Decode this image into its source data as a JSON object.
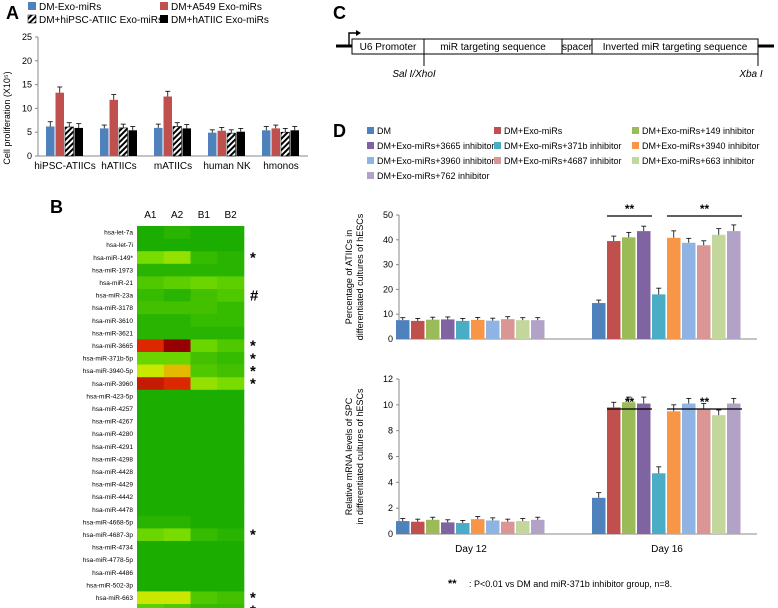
{
  "panels": {
    "a": "A",
    "b": "B",
    "c": "C",
    "d": "D"
  },
  "colors": {
    "blue": "#4f81bd",
    "red": "#c0504d",
    "green": "#9bbb59",
    "purple": "#8064a2",
    "teal": "#4bacc6",
    "orange": "#f79646",
    "lightblue": "#8fb4e3",
    "pink": "#d99694",
    "lightgreen": "#c3d69b",
    "lavender": "#b3a2c7",
    "heat_green": "#00a000"
  },
  "chart_data": [
    {
      "id": "A",
      "type": "bar",
      "ylabel": "Cell proliferation  (X10⁵)",
      "ylim": [
        0,
        25
      ],
      "yticks": [
        0,
        5,
        10,
        15,
        20,
        25
      ],
      "categories": [
        "hiPSC-ATIICs",
        "hATIICs",
        "mATIICs",
        "human NK",
        "hmonos"
      ],
      "series": [
        {
          "name": "DM-Exo-miRs",
          "color": "#4f81bd",
          "pattern": "solid",
          "values": [
            6.2,
            5.8,
            5.9,
            4.9,
            5.4
          ],
          "errors": [
            1.0,
            0.7,
            0.8,
            0.6,
            0.8
          ]
        },
        {
          "name": "DM+A549 Exo-miRs",
          "color": "#c0504d",
          "pattern": "solid",
          "values": [
            13.3,
            11.8,
            12.5,
            5.3,
            5.8
          ],
          "errors": [
            1.2,
            1.1,
            1.1,
            0.7,
            0.7
          ]
        },
        {
          "name": "DM+hiPSC-ATIIC Exo-miRs",
          "color": "#000000",
          "pattern": "hatch",
          "values": [
            6.1,
            5.9,
            6.2,
            4.8,
            5.0
          ],
          "errors": [
            0.9,
            0.8,
            0.8,
            0.7,
            0.8
          ]
        },
        {
          "name": "DM+hATIIC Exo-miRs",
          "color": "#000000",
          "pattern": "solid",
          "values": [
            5.9,
            5.4,
            5.8,
            5.1,
            5.4
          ],
          "errors": [
            0.9,
            0.8,
            0.8,
            0.7,
            0.8
          ]
        }
      ],
      "legend_order": [
        0,
        1,
        2,
        3
      ]
    },
    {
      "id": "B",
      "type": "heatmap",
      "columns": [
        "A1",
        "A2",
        "B1",
        "B2"
      ],
      "rows": [
        "hsa-let-7a",
        "hsa-let-7i",
        "hsa-miR-149*",
        "hsa-miR-1973",
        "hsa-miR-21",
        "hsa-miR-23a",
        "hsa-miR-3178",
        "hsa-miR-3610",
        "hsa-miR-3621",
        "hsa-miR-3665",
        "hsa-miR-371b-5p",
        "hsa-miR-3940-5p",
        "hsa-miR-3960",
        "hsa-miR-423-5p",
        "hsa-miR-4257",
        "hsa-miR-4267",
        "hsa-miR-4280",
        "hsa-miR-4291",
        "hsa-miR-4298",
        "hsa-miR-4428",
        "hsa-miR-4429",
        "hsa-miR-4442",
        "hsa-miR-4478",
        "hsa-miR-4668-5p",
        "hsa-miR-4687-3p",
        "hsa-miR-4734",
        "hsa-miR-4778-5p",
        "hsa-miR-4486",
        "hsa-miR-502-3p",
        "hsa-miR-663",
        "hsa-miR-762"
      ],
      "marks": [
        "",
        "",
        "*",
        "",
        "",
        "#",
        "",
        "",
        "",
        "*",
        "*",
        "*",
        "*",
        "",
        "",
        "",
        "",
        "",
        "",
        "",
        "",
        "",
        "",
        "",
        "*",
        "",
        "",
        "",
        "",
        "*",
        "*"
      ],
      "values": [
        [
          0.1,
          0.15,
          0.1,
          0.1
        ],
        [
          0.1,
          0.1,
          0.1,
          0.1
        ],
        [
          0.45,
          0.5,
          0.2,
          0.15
        ],
        [
          0.15,
          0.15,
          0.15,
          0.15
        ],
        [
          0.3,
          0.35,
          0.4,
          0.35
        ],
        [
          0.2,
          0.15,
          0.25,
          0.3
        ],
        [
          0.25,
          0.25,
          0.25,
          0.2
        ],
        [
          0.15,
          0.15,
          0.2,
          0.2
        ],
        [
          0.15,
          0.15,
          0.15,
          0.15
        ],
        [
          0.85,
          1.0,
          0.4,
          0.3
        ],
        [
          0.4,
          0.4,
          0.25,
          0.2
        ],
        [
          0.6,
          0.7,
          0.3,
          0.25
        ],
        [
          0.9,
          0.85,
          0.5,
          0.45
        ],
        [
          0.1,
          0.1,
          0.1,
          0.1
        ],
        [
          0.1,
          0.1,
          0.1,
          0.1
        ],
        [
          0.1,
          0.1,
          0.1,
          0.1
        ],
        [
          0.1,
          0.1,
          0.1,
          0.1
        ],
        [
          0.1,
          0.1,
          0.1,
          0.1
        ],
        [
          0.1,
          0.1,
          0.1,
          0.1
        ],
        [
          0.1,
          0.1,
          0.1,
          0.1
        ],
        [
          0.1,
          0.1,
          0.1,
          0.1
        ],
        [
          0.1,
          0.1,
          0.1,
          0.1
        ],
        [
          0.1,
          0.1,
          0.1,
          0.1
        ],
        [
          0.15,
          0.15,
          0.1,
          0.1
        ],
        [
          0.4,
          0.45,
          0.2,
          0.15
        ],
        [
          0.1,
          0.1,
          0.1,
          0.1
        ],
        [
          0.1,
          0.1,
          0.1,
          0.1
        ],
        [
          0.1,
          0.1,
          0.1,
          0.1
        ],
        [
          0.1,
          0.1,
          0.1,
          0.1
        ],
        [
          0.6,
          0.6,
          0.3,
          0.25
        ],
        [
          0.35,
          0.3,
          0.2,
          0.2
        ]
      ]
    },
    {
      "id": "D-top",
      "type": "bar",
      "ylabel_lines": [
        "Percentage of ATIICs in",
        "differentiated cultures of hESCs"
      ],
      "ylim": [
        0,
        50
      ],
      "yticks": [
        0,
        10,
        20,
        30,
        40,
        50
      ],
      "categories": [
        "Day 12",
        "Day 16"
      ],
      "series": [
        {
          "name": "DM",
          "color": "#4f81bd",
          "values": [
            7.6,
            14.5
          ],
          "errors": [
            1.0,
            1.2
          ]
        },
        {
          "name": "DM+Exo-miRs",
          "color": "#c0504d",
          "values": [
            7.3,
            39.5
          ],
          "errors": [
            1.0,
            2.0
          ]
        },
        {
          "name": "DM+Exo-miRs+149 inhibitor",
          "color": "#9bbb59",
          "values": [
            7.8,
            41.0
          ],
          "errors": [
            1.0,
            2.0
          ]
        },
        {
          "name": "DM+Exo-miRs+3665 inhibitor",
          "color": "#8064a2",
          "values": [
            7.9,
            43.5
          ],
          "errors": [
            1.0,
            2.0
          ]
        },
        {
          "name": "DM+Exo-miRs+371b inhibitor",
          "color": "#4bacc6",
          "values": [
            7.3,
            18.0
          ],
          "errors": [
            1.0,
            2.5
          ]
        },
        {
          "name": "DM+Exo-miRs+3940 inhibitor",
          "color": "#f79646",
          "values": [
            7.7,
            40.8
          ],
          "errors": [
            1.0,
            2.8
          ]
        },
        {
          "name": "DM+Exo-miRs+3960 inhibitor",
          "color": "#8fb4e3",
          "values": [
            7.4,
            38.8
          ],
          "errors": [
            1.0,
            1.8
          ]
        },
        {
          "name": "DM+Exo-miRs+4687 inhibitor",
          "color": "#d99694",
          "values": [
            8.0,
            37.8
          ],
          "errors": [
            1.0,
            1.8
          ]
        },
        {
          "name": "DM+Exo-miRs+663 inhibitor",
          "color": "#c3d69b",
          "values": [
            7.6,
            42.0
          ],
          "errors": [
            1.0,
            2.5
          ]
        },
        {
          "name": "DM+Exo-miRs+762 inhibitor",
          "color": "#b3a2c7",
          "values": [
            7.6,
            43.5
          ],
          "errors": [
            1.0,
            2.5
          ]
        }
      ],
      "significance": [
        "**",
        "**"
      ]
    },
    {
      "id": "D-bottom",
      "type": "bar",
      "ylabel_lines": [
        "Relative mRNA levels of SPC",
        "in differentiated cultures of hESCs"
      ],
      "ylim": [
        0,
        12
      ],
      "yticks": [
        0,
        2,
        4,
        6,
        8,
        10,
        12
      ],
      "categories": [
        "Day 12",
        "Day 16"
      ],
      "series": [
        {
          "name": "DM",
          "color": "#4f81bd",
          "values": [
            1.0,
            2.8
          ],
          "errors": [
            0.2,
            0.4
          ]
        },
        {
          "name": "DM+Exo-miRs",
          "color": "#c0504d",
          "values": [
            0.95,
            9.8
          ],
          "errors": [
            0.2,
            0.4
          ]
        },
        {
          "name": "DM+Exo-miRs+149 inhibitor",
          "color": "#9bbb59",
          "values": [
            1.1,
            10.2
          ],
          "errors": [
            0.2,
            0.4
          ]
        },
        {
          "name": "DM+Exo-miRs+3665 inhibitor",
          "color": "#8064a2",
          "values": [
            0.9,
            10.1
          ],
          "errors": [
            0.2,
            0.5
          ]
        },
        {
          "name": "DM+Exo-miRs+371b inhibitor",
          "color": "#4bacc6",
          "values": [
            0.85,
            4.7
          ],
          "errors": [
            0.2,
            0.5
          ]
        },
        {
          "name": "DM+Exo-miRs+3940 inhibitor",
          "color": "#f79646",
          "values": [
            1.15,
            9.5
          ],
          "errors": [
            0.2,
            0.5
          ]
        },
        {
          "name": "DM+Exo-miRs+3960 inhibitor",
          "color": "#8fb4e3",
          "values": [
            1.05,
            10.1
          ],
          "errors": [
            0.2,
            0.4
          ]
        },
        {
          "name": "DM+Exo-miRs+4687 inhibitor",
          "color": "#d99694",
          "values": [
            0.95,
            9.7
          ],
          "errors": [
            0.2,
            0.4
          ]
        },
        {
          "name": "DM+Exo-miRs+663 inhibitor",
          "color": "#c3d69b",
          "values": [
            1.0,
            9.2
          ],
          "errors": [
            0.2,
            0.4
          ]
        },
        {
          "name": "DM+Exo-miRs+762 inhibitor",
          "color": "#b3a2c7",
          "values": [
            1.1,
            10.1
          ],
          "errors": [
            0.2,
            0.4
          ]
        }
      ],
      "significance": [
        "**",
        "**"
      ]
    }
  ],
  "panel_c": {
    "boxes": [
      "U6 Promoter",
      "miR targeting sequence",
      "spacer",
      "Inverted miR targeting sequence"
    ],
    "site_left": "Sal I/XhoI",
    "site_right": "Xba I"
  },
  "panel_d_legend_order": [
    0,
    1,
    2,
    3,
    4,
    5,
    6,
    7,
    8,
    9
  ],
  "footnote": {
    "stars": "**",
    "text": ": P<0.01 vs DM and miR-371b inhibitor group, n=8."
  }
}
